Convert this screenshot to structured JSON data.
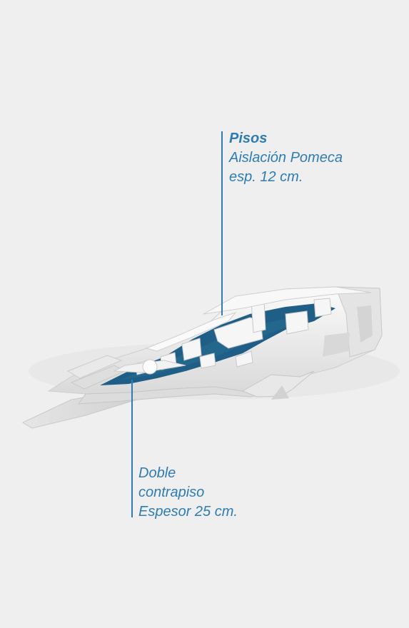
{
  "annotations": {
    "top": {
      "title": "Pisos",
      "line1": "Aislación Pomeca",
      "line2": "esp. 12 cm."
    },
    "bottom": {
      "line1": "Doble",
      "line2": "contrapiso",
      "line3": "Espesor 25 cm."
    }
  },
  "colors": {
    "background": "#efefef",
    "accent": "#2f7cb5",
    "floor": "#1f5f87",
    "model": "#f4f4f4"
  }
}
